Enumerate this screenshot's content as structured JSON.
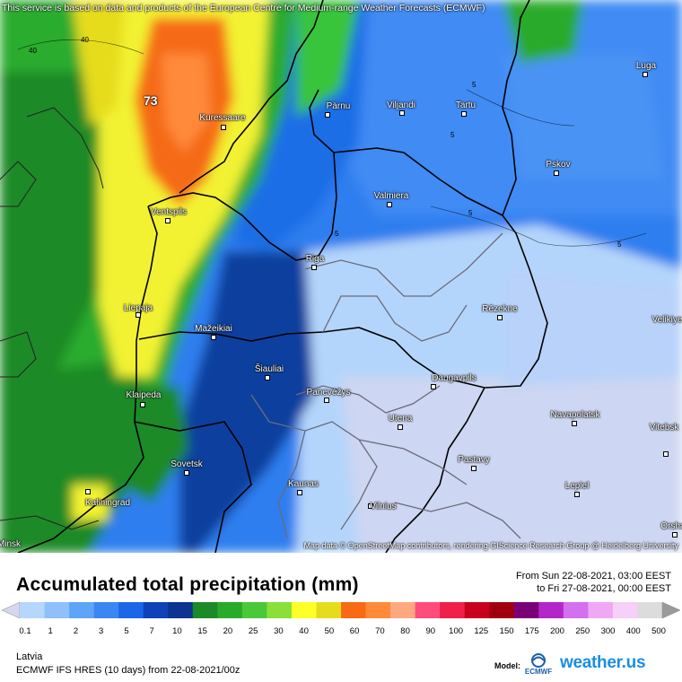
{
  "attribution_top": "This service is based on data and products of the European Centre for Medium-range Weather Forecasts (ECMWF)",
  "attribution_bottom": "Map data © OpenStreetMap contributors, rendering GIScience Research Group @ Heidelberg University",
  "title": "Accumulated total precipitation (mm)",
  "period": {
    "from": "From Sun 22-08-2021, 03:00 EEST",
    "to": "to Fri 27-08-2021, 00:00 EEST"
  },
  "region": "Latvia",
  "model_run": "ECMWF IFS HRES (10 days) from  22-08-2021/00z",
  "model_label": "Model:",
  "model_logo_text": "ECMWF",
  "brand": "weather.us",
  "peak_value": "73",
  "contour_labels": [
    "40",
    "40",
    "5",
    "5",
    "5",
    "5",
    "5"
  ],
  "cities": [
    {
      "name": "Kuressaare"
    },
    {
      "name": "Pärnu"
    },
    {
      "name": "Viljandi"
    },
    {
      "name": "Tartu"
    },
    {
      "name": "Luga"
    },
    {
      "name": "Pskov"
    },
    {
      "name": "Valmiera"
    },
    {
      "name": "Ventspils"
    },
    {
      "name": "Riga"
    },
    {
      "name": "Liepaja"
    },
    {
      "name": "Mažeikiai"
    },
    {
      "name": "Rēzekne"
    },
    {
      "name": "Šiauliai"
    },
    {
      "name": "Panevėžys"
    },
    {
      "name": "Daugavpils"
    },
    {
      "name": "Klaipeda"
    },
    {
      "name": "Utena"
    },
    {
      "name": "Navapolatsk"
    },
    {
      "name": "Vitebsk"
    },
    {
      "name": "Sovetsk"
    },
    {
      "name": "Pastavy"
    },
    {
      "name": "Kaunas"
    },
    {
      "name": "Kaliningrad"
    },
    {
      "name": "Lepiel"
    },
    {
      "name": "Vilnius"
    },
    {
      "name": "Orsha"
    },
    {
      "name": "Minsk"
    },
    {
      "name": "Velikiye Luki"
    }
  ],
  "legend": {
    "ticks": [
      "0.1",
      "1",
      "2",
      "3",
      "5",
      "7",
      "10",
      "15",
      "20",
      "25",
      "30",
      "40",
      "50",
      "60",
      "70",
      "80",
      "90",
      "100",
      "125",
      "150",
      "175",
      "200",
      "250",
      "300",
      "400",
      "500"
    ],
    "colors": [
      "#d6d6ee",
      "#b6d7fb",
      "#8ec0fb",
      "#5ea4f8",
      "#3a86f3",
      "#1c66e8",
      "#0f42b8",
      "#0c3490",
      "#1d8a28",
      "#2aaa2a",
      "#4ac83a",
      "#88e038",
      "#ffff28",
      "#e6dc1e",
      "#fa6a14",
      "#ff8a3a",
      "#ffa880",
      "#ff4c7c",
      "#f0204a",
      "#c8001e",
      "#a0000e",
      "#7a0078",
      "#b426c8",
      "#d270f0",
      "#f0a8f5",
      "#f6d0f8",
      "#dcdcdc",
      "#9a9a9a"
    ]
  }
}
